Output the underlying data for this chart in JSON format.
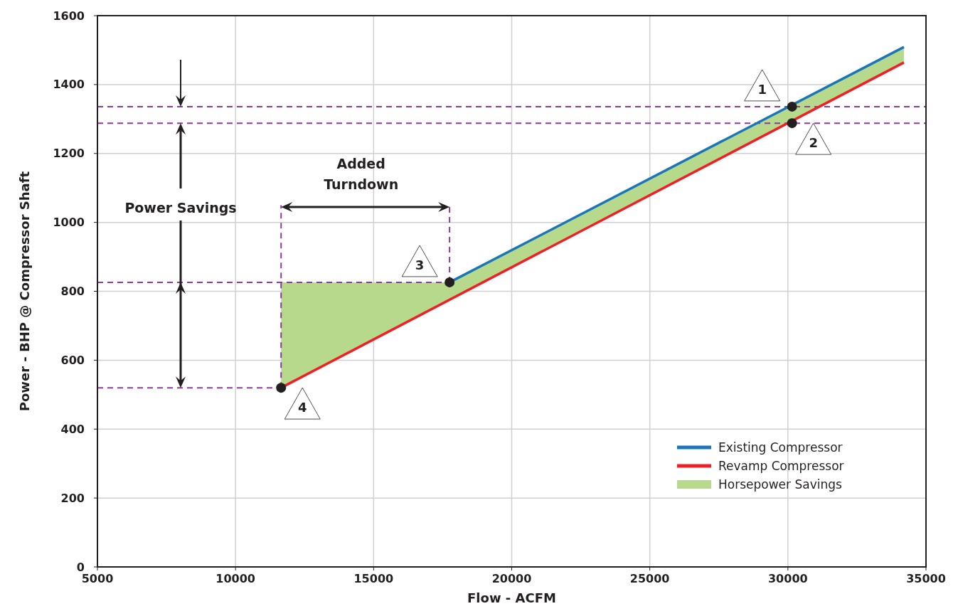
{
  "chart_data": {
    "type": "line",
    "xlabel": "Flow - ACFM",
    "ylabel": "Power - BHP @ Compressor Shaft",
    "xlim": [
      5000,
      35000
    ],
    "xticks": [
      5000,
      10000,
      15000,
      20000,
      25000,
      30000,
      35000
    ],
    "ylim": [
      0,
      1600
    ],
    "yticks": [
      0,
      200,
      400,
      600,
      800,
      1000,
      1200,
      1400,
      1600
    ],
    "grid": true,
    "legend": "bottom right",
    "series": [
      {
        "type": "line",
        "name": "Horsepower Savings",
        "color": "#b7d98b",
        "x": [
          11650,
          17750,
          34200
        ],
        "values": [
          null,
          null,
          null
        ],
        "lower": [
          520,
          775,
          1464
        ],
        "upper": [
          826,
          826,
          1509
        ]
      },
      {
        "type": "line",
        "name": "Revamp Compressor",
        "color": "#ee2027",
        "x": [
          11650,
          34200
        ],
        "values": [
          520,
          1464
        ]
      },
      {
        "type": "line",
        "name": "Existing Compressor",
        "color": "#1b75bb",
        "x": [
          17750,
          34200
        ],
        "values": [
          826,
          1509
        ]
      },
      {
        "type": "line",
        "color": "#8e3a9c",
        "line_style": "dashed",
        "x": [
          5000,
          11650
        ],
        "values": [
          520,
          520
        ]
      },
      {
        "type": "line",
        "color": "#8e3a9c",
        "line_style": "dashed",
        "x": [
          5000,
          17750
        ],
        "values": [
          826,
          826
        ]
      },
      {
        "type": "line",
        "color": "#8e3a9c",
        "line_style": "dashed",
        "x": [
          11650,
          11650
        ],
        "values": [
          520,
          1050
        ]
      },
      {
        "type": "line",
        "color": "#8e3a9c",
        "line_style": "dashed",
        "x": [
          17750,
          17750
        ],
        "values": [
          826,
          1050
        ]
      },
      {
        "type": "scatter",
        "color": "#231f20",
        "marker": "circle",
        "x": [
          30150,
          30150,
          17750,
          11650
        ],
        "values": [
          1336,
          1288,
          826,
          520
        ]
      }
    ],
    "ref_lines": [
      {
        "axis": "y",
        "value": 1336,
        "color": "#8e3a9c",
        "line_style": "dashed"
      },
      {
        "axis": "y",
        "value": 1288,
        "color": "#8e3a9c",
        "line_style": "dashed"
      }
    ],
    "annotations": [
      {
        "text": "1",
        "x": 30150,
        "y": 1336
      },
      {
        "text": "2",
        "x": 30150,
        "y": 1288
      },
      {
        "text": "3",
        "x": 17750,
        "y": 826
      },
      {
        "text": "4",
        "x": 11650,
        "y": 520
      },
      "Power Savings",
      "Added Turndown"
    ]
  }
}
